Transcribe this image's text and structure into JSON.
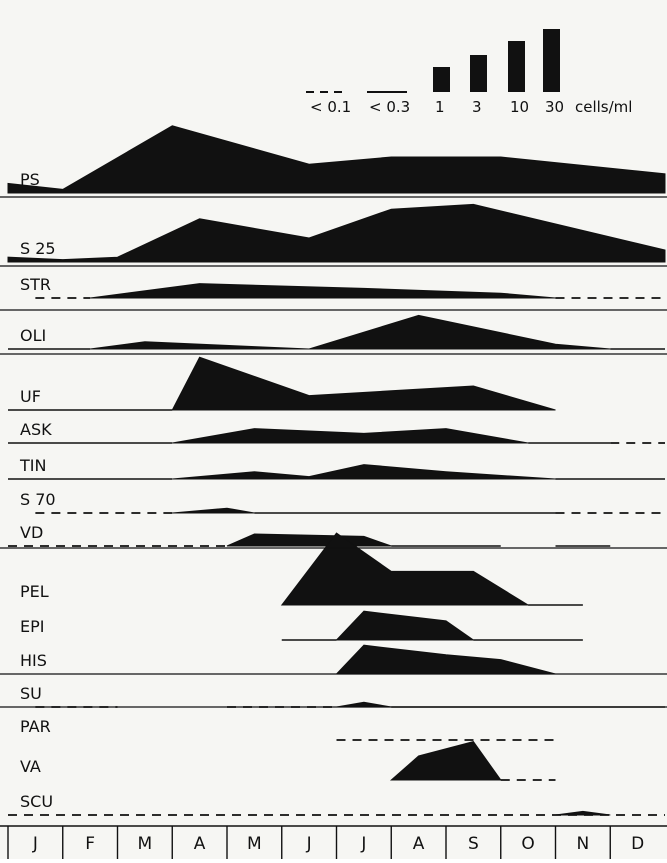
{
  "chart_data": {
    "type": "area",
    "title": "",
    "xlabel": "",
    "ylabel": "",
    "months": [
      "J",
      "F",
      "M",
      "A",
      "M",
      "J",
      "J",
      "A",
      "S",
      "O",
      "N",
      "D"
    ],
    "legend": {
      "levels": [
        {
          "label": "< 0.1",
          "density": 0.1,
          "style": "dashed"
        },
        {
          "label": "< 0.3",
          "density": 0.3,
          "style": "solid-line"
        },
        {
          "label": "1",
          "density": 1,
          "style": "bar"
        },
        {
          "label": "3",
          "density": 3,
          "style": "bar"
        },
        {
          "label": "10",
          "density": 10,
          "style": "bar"
        },
        {
          "label": "30",
          "density": 30,
          "style": "bar"
        }
      ],
      "unit": "cells/ml"
    },
    "scale_note": "values in cells/ml; taxa with a baseline are plotted as filled silhouettes, dashed baseline = < 0.1, plain line = < 0.3",
    "taxa": [
      {
        "name": "PS",
        "abundance": [
          [
            0.0,
            4
          ],
          [
            1.0,
            1.5
          ],
          [
            3.0,
            28
          ],
          [
            5.5,
            12
          ],
          [
            7.0,
            15
          ],
          [
            9.0,
            15
          ],
          [
            12.0,
            8
          ]
        ],
        "dashed": [],
        "lines": []
      },
      {
        "name": "S 25",
        "abundance": [
          [
            0.0,
            2
          ],
          [
            1.0,
            1
          ],
          [
            2.0,
            2
          ],
          [
            3.5,
            18
          ],
          [
            5.5,
            10
          ],
          [
            7.0,
            22
          ],
          [
            8.5,
            24
          ],
          [
            12.0,
            5
          ]
        ],
        "dashed": [],
        "lines": []
      },
      {
        "name": "STR",
        "abundance": [
          [
            1.5,
            0
          ],
          [
            3.5,
            6
          ],
          [
            6.5,
            4
          ],
          [
            9.0,
            2
          ],
          [
            10.0,
            0
          ]
        ],
        "dashed": [
          [
            0.5,
            1.5
          ],
          [
            10.0,
            12.0
          ]
        ],
        "lines": []
      },
      {
        "name": "OLI",
        "abundance": [
          [
            1.5,
            0
          ],
          [
            2.5,
            3
          ],
          [
            4.5,
            1
          ],
          [
            5.5,
            0
          ],
          [
            7.5,
            14
          ],
          [
            10.0,
            2
          ],
          [
            11.0,
            0
          ]
        ],
        "dashed": [],
        "lines": [
          [
            0.0,
            1.5
          ],
          [
            11.0,
            12.0
          ]
        ]
      },
      {
        "name": "UF",
        "abundance": [
          [
            3.0,
            0
          ],
          [
            3.5,
            22
          ],
          [
            5.5,
            6
          ],
          [
            7.0,
            8
          ],
          [
            8.5,
            10
          ],
          [
            10.0,
            0
          ]
        ],
        "dashed": [],
        "lines": [
          [
            0.0,
            3.0
          ]
        ]
      },
      {
        "name": "ASK",
        "abundance": [
          [
            3.0,
            0
          ],
          [
            4.5,
            6
          ],
          [
            6.5,
            4
          ],
          [
            8.0,
            6
          ],
          [
            9.5,
            0
          ]
        ],
        "dashed": [
          [
            11.0,
            12.0
          ]
        ],
        "lines": [
          [
            0.0,
            3.0
          ],
          [
            9.5,
            11.0
          ]
        ]
      },
      {
        "name": "TIN",
        "abundance": [
          [
            3.0,
            0
          ],
          [
            4.5,
            3
          ],
          [
            5.5,
            1
          ],
          [
            6.5,
            6
          ],
          [
            8.0,
            3
          ],
          [
            10.0,
            0
          ]
        ],
        "dashed": [],
        "lines": [
          [
            0.0,
            3.0
          ],
          [
            10.0,
            12.0
          ]
        ]
      },
      {
        "name": "S 70",
        "abundance": [
          [
            3.0,
            0
          ],
          [
            4.0,
            2
          ],
          [
            4.5,
            0
          ]
        ],
        "dashed": [
          [
            0.5,
            3.0
          ],
          [
            10.0,
            12.0
          ]
        ],
        "lines": [
          [
            4.5,
            10.0
          ]
        ]
      },
      {
        "name": "VD",
        "abundance": [
          [
            4.0,
            0
          ],
          [
            4.5,
            5
          ],
          [
            6.5,
            4
          ],
          [
            7.0,
            0
          ]
        ],
        "dashed": [
          [
            0.0,
            4.0
          ]
        ],
        "lines": [
          [
            7.0,
            9.0
          ],
          [
            10.0,
            11.0
          ]
        ]
      },
      {
        "name": "PEL",
        "abundance": [
          [
            5.0,
            0
          ],
          [
            6.0,
            30
          ],
          [
            7.0,
            14
          ],
          [
            8.5,
            14
          ],
          [
            9.5,
            0
          ]
        ],
        "dashed": [],
        "lines": [
          [
            9.5,
            10.5
          ]
        ]
      },
      {
        "name": "EPI",
        "abundance": [
          [
            6.0,
            0
          ],
          [
            6.5,
            12
          ],
          [
            8.0,
            8
          ],
          [
            8.5,
            0
          ]
        ],
        "dashed": [],
        "lines": [
          [
            5.0,
            6.0
          ],
          [
            8.5,
            10.5
          ]
        ]
      },
      {
        "name": "HIS",
        "abundance": [
          [
            6.0,
            0
          ],
          [
            6.5,
            12
          ],
          [
            8.0,
            8
          ],
          [
            9.0,
            6
          ],
          [
            10.0,
            0
          ]
        ],
        "dashed": [],
        "lines": []
      },
      {
        "name": "SU",
        "abundance": [
          [
            6.0,
            0
          ],
          [
            6.5,
            2
          ],
          [
            7.0,
            0
          ]
        ],
        "dashed": [
          [
            0.5,
            2.0
          ],
          [
            4.0,
            6.0
          ]
        ],
        "lines": [
          [
            7.0,
            12.0
          ]
        ]
      },
      {
        "name": "PAR",
        "abundance": [],
        "dashed": [
          [
            6.0,
            10.0
          ]
        ],
        "lines": []
      },
      {
        "name": "VA",
        "abundance": [
          [
            7.0,
            0
          ],
          [
            7.5,
            10
          ],
          [
            8.5,
            16
          ],
          [
            9.0,
            0
          ]
        ],
        "dashed": [
          [
            9.0,
            10.0
          ]
        ],
        "lines": []
      },
      {
        "name": "SCU",
        "abundance": [
          [
            10.0,
            0
          ],
          [
            10.5,
            1.5
          ],
          [
            11.0,
            0
          ]
        ],
        "dashed": [
          [
            0.0,
            12.0
          ]
        ],
        "lines": []
      }
    ]
  }
}
